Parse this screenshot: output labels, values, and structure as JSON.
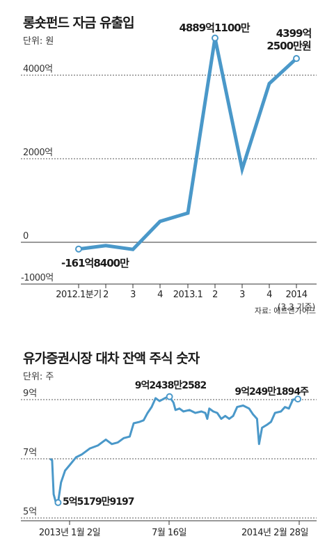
{
  "chart_data": [
    {
      "type": "line",
      "title": "롱숏펀드 자금 유출입",
      "unit": "단위: 원",
      "source": "자료: 에프앤가이드",
      "y_ticks": [
        "4000억",
        "2000억",
        "0",
        "-1000억"
      ],
      "y_tick_values": [
        4000,
        2000,
        0,
        -1000
      ],
      "ylim": [
        -1000,
        4700
      ],
      "grid": true,
      "categories": [
        "2012.1분기",
        "2",
        "3",
        "4",
        "2013.1",
        "2",
        "3",
        "4",
        "2014"
      ],
      "category_note": "(3.3 기준)",
      "series": [
        {
          "values": [
            -162,
            -80,
            -170,
            500,
            700,
            4889,
            1750,
            3800,
            4399
          ],
          "color": "#4a98c9"
        }
      ],
      "annotations": [
        {
          "index": 0,
          "text": "-161억8400만"
        },
        {
          "index": 5,
          "text": "4889억1100만"
        },
        {
          "index": 8,
          "line1": "4399억",
          "line2": "2500만원"
        }
      ]
    },
    {
      "type": "line",
      "title": "유가증권시장 대차 잔액 주식 숫자",
      "unit": "단위: 주",
      "y_ticks": [
        "9억",
        "7억",
        "5억"
      ],
      "y_tick_values": [
        9,
        7,
        5
      ],
      "ylim": [
        4.8,
        9.4
      ],
      "grid": true,
      "x_labels": [
        "2013년 1월 2일",
        "7월 16일",
        "2014년 2월 28일"
      ],
      "x_label_positions": [
        0.0,
        0.5,
        1.0
      ],
      "series": [
        {
          "color": "#4a98c9",
          "points": [
            [
              0.0,
              7.0
            ],
            [
              0.01,
              6.95
            ],
            [
              0.018,
              5.8
            ],
            [
              0.03,
              5.5
            ],
            [
              0.04,
              5.52
            ],
            [
              0.055,
              6.2
            ],
            [
              0.075,
              6.6
            ],
            [
              0.1,
              6.8
            ],
            [
              0.13,
              7.05
            ],
            [
              0.16,
              7.15
            ],
            [
              0.2,
              7.35
            ],
            [
              0.24,
              7.45
            ],
            [
              0.28,
              7.65
            ],
            [
              0.31,
              7.5
            ],
            [
              0.34,
              7.55
            ],
            [
              0.37,
              7.7
            ],
            [
              0.4,
              7.75
            ],
            [
              0.42,
              8.2
            ],
            [
              0.45,
              8.25
            ],
            [
              0.47,
              8.3
            ],
            [
              0.49,
              8.55
            ],
            [
              0.51,
              8.75
            ],
            [
              0.53,
              9.05
            ],
            [
              0.55,
              8.95
            ],
            [
              0.58,
              9.06
            ],
            [
              0.6,
              9.1
            ],
            [
              0.62,
              8.9
            ],
            [
              0.63,
              8.65
            ],
            [
              0.65,
              8.7
            ],
            [
              0.67,
              8.6
            ],
            [
              0.7,
              8.65
            ],
            [
              0.73,
              8.55
            ],
            [
              0.76,
              8.6
            ],
            [
              0.78,
              8.55
            ],
            [
              0.79,
              8.35
            ],
            [
              0.8,
              8.7
            ],
            [
              0.82,
              8.6
            ],
            [
              0.84,
              8.55
            ],
            [
              0.86,
              8.35
            ],
            [
              0.88,
              8.45
            ],
            [
              0.9,
              8.35
            ],
            [
              0.92,
              8.45
            ],
            [
              0.94,
              8.75
            ],
            [
              0.97,
              8.8
            ],
            [
              1.0,
              8.7
            ],
            [
              1.02,
              8.5
            ],
            [
              1.04,
              8.35
            ],
            [
              1.05,
              7.5
            ],
            [
              1.065,
              8.05
            ],
            [
              1.09,
              8.15
            ],
            [
              1.11,
              8.25
            ],
            [
              1.13,
              8.55
            ],
            [
              1.16,
              8.6
            ],
            [
              1.18,
              8.75
            ],
            [
              1.2,
              8.7
            ],
            [
              1.22,
              9.0
            ],
            [
              1.245,
              9.02
            ]
          ]
        }
      ],
      "annotations": [
        {
          "index": 4,
          "text": "5억5179만9197"
        },
        {
          "index": 25,
          "text": "9억2438만2582"
        },
        {
          "index": 56,
          "text": "9억249만1894주"
        }
      ]
    }
  ]
}
